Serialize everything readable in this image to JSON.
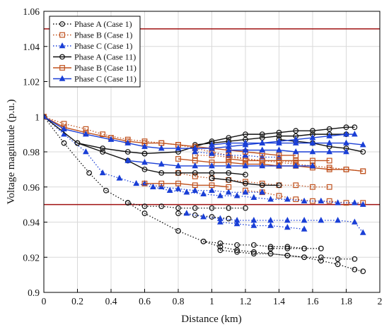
{
  "chart_data": {
    "type": "line",
    "xlabel": "Distance (km)",
    "ylabel": "Voltage magnitude (p.u.)",
    "xlim": [
      0,
      2
    ],
    "ylim": [
      0.9,
      1.06
    ],
    "xticks": [
      "0",
      "0.2",
      "0.4",
      "0.6",
      "0.8",
      "1",
      "1.2",
      "1.4",
      "1.6",
      "1.8",
      "2"
    ],
    "yticks": [
      "0.9",
      "0.92",
      "0.94",
      "0.96",
      "0.98",
      "1",
      "1.02",
      "1.04",
      "1.06"
    ],
    "grid": true,
    "legend_position": "top-left",
    "limit_lines": [
      0.95,
      1.05
    ],
    "limit_color": "#a01010",
    "series": [
      {
        "name": "Phase A (Case 1)",
        "color": "#111111",
        "marker": "circle",
        "dashed": true,
        "branches": [
          {
            "x": [
              0,
              0.12,
              0.27,
              0.37,
              0.5,
              0.6,
              0.8,
              0.95,
              1.05,
              1.15,
              1.25,
              1.35,
              1.45,
              1.55,
              1.65,
              1.75,
              1.85,
              1.9
            ],
            "y": [
              1.0,
              0.985,
              0.968,
              0.958,
              0.951,
              0.945,
              0.935,
              0.929,
              0.926,
              0.924,
              0.923,
              0.922,
              0.921,
              0.92,
              0.918,
              0.916,
              0.913,
              0.912
            ]
          },
          {
            "x": [
              0.5,
              0.6,
              0.7,
              0.8,
              0.9,
              1.0,
              1.1,
              1.2
            ],
            "y": [
              0.951,
              0.949,
              0.949,
              0.948,
              0.948,
              0.948,
              0.948,
              0.948
            ]
          },
          {
            "x": [
              0.8,
              0.9,
              1.0,
              1.1
            ],
            "y": [
              0.945,
              0.944,
              0.943,
              0.942
            ]
          },
          {
            "x": [
              0.95,
              1.05,
              1.15,
              1.25,
              1.35,
              1.45,
              1.55
            ],
            "y": [
              0.929,
              0.928,
              0.927,
              0.927,
              0.926,
              0.926,
              0.925
            ]
          },
          {
            "x": [
              1.05,
              1.15,
              1.25,
              1.35,
              1.45
            ],
            "y": [
              0.924,
              0.923,
              0.922,
              0.922,
              0.921
            ]
          },
          {
            "x": [
              1.45,
              1.55,
              1.65,
              1.75,
              1.85
            ],
            "y": [
              0.921,
              0.92,
              0.92,
              0.919,
              0.919
            ]
          },
          {
            "x": [
              1.35,
              1.45,
              1.55,
              1.65
            ],
            "y": [
              0.925,
              0.925,
              0.925,
              0.925
            ]
          }
        ]
      },
      {
        "name": "Phase B (Case 1)",
        "color": "#c0521e",
        "marker": "square",
        "dashed": true,
        "branches": [
          {
            "x": [
              0,
              0.12,
              0.25,
              0.35,
              0.5,
              0.6,
              0.7,
              0.8,
              0.9,
              1.0,
              1.1,
              1.2,
              1.3,
              1.4,
              1.5,
              1.6,
              1.7,
              1.8,
              1.9
            ],
            "y": [
              1.0,
              0.996,
              0.993,
              0.99,
              0.987,
              0.986,
              0.985,
              0.984,
              0.982,
              0.98,
              0.978,
              0.976,
              0.975,
              0.974,
              0.973,
              0.972,
              0.971,
              0.97,
              0.969
            ]
          },
          {
            "x": [
              0.8,
              0.9,
              1.0,
              1.1,
              1.2,
              1.3,
              1.4,
              1.5,
              1.6,
              1.7
            ],
            "y": [
              0.968,
              0.966,
              0.965,
              0.964,
              0.963,
              0.962,
              0.961,
              0.961,
              0.96,
              0.96
            ]
          },
          {
            "x": [
              1.2,
              1.3,
              1.4,
              1.5,
              1.6,
              1.7,
              1.8,
              1.9
            ],
            "y": [
              0.958,
              0.957,
              0.955,
              0.953,
              0.952,
              0.952,
              0.951,
              0.951
            ]
          },
          {
            "x": [
              0.9,
              1.0,
              1.1,
              1.2,
              1.3,
              1.4,
              1.5
            ],
            "y": [
              0.978,
              0.978,
              0.977,
              0.976,
              0.975,
              0.975,
              0.974
            ]
          }
        ]
      },
      {
        "name": "Phase C (Case 1)",
        "color": "#1a3fd6",
        "marker": "triangle",
        "dashed": true,
        "branches": [
          {
            "x": [
              0,
              0.12,
              0.25,
              0.35,
              0.45,
              0.55,
              0.65,
              0.75,
              0.85,
              0.95,
              1.05,
              1.15,
              1.25,
              1.35,
              1.45,
              1.55,
              1.65,
              1.75,
              1.85,
              1.9
            ],
            "y": [
              1.0,
              0.99,
              0.98,
              0.968,
              0.965,
              0.962,
              0.96,
              0.958,
              0.957,
              0.956,
              0.955,
              0.955,
              0.954,
              0.953,
              0.953,
              0.952,
              0.952,
              0.951,
              0.951,
              0.95
            ]
          },
          {
            "x": [
              0.85,
              0.95,
              1.05,
              1.15,
              1.25,
              1.35,
              1.45,
              1.55,
              1.65,
              1.75,
              1.85,
              1.9
            ],
            "y": [
              0.945,
              0.943,
              0.942,
              0.941,
              0.941,
              0.941,
              0.941,
              0.941,
              0.941,
              0.941,
              0.94,
              0.934
            ]
          },
          {
            "x": [
              1.05,
              1.15,
              1.25,
              1.35,
              1.45,
              1.55
            ],
            "y": [
              0.94,
              0.939,
              0.938,
              0.938,
              0.937,
              0.936
            ]
          },
          {
            "x": [
              0.6,
              0.7,
              0.8,
              0.9,
              1.0,
              1.1,
              1.2,
              1.3
            ],
            "y": [
              0.962,
              0.96,
              0.959,
              0.958,
              0.958,
              0.957,
              0.957,
              0.957
            ]
          },
          {
            "x": [
              0.9,
              1.0,
              1.1,
              1.2,
              1.3,
              1.4
            ],
            "y": [
              0.98,
              0.979,
              0.978,
              0.978,
              0.977,
              0.977
            ]
          }
        ]
      },
      {
        "name": "Phase A (Case 11)",
        "color": "#111111",
        "marker": "circle",
        "dashed": false,
        "branches": [
          {
            "x": [
              0,
              0.2,
              0.35,
              0.5,
              0.6,
              0.7,
              0.8,
              0.9,
              1.0,
              1.1,
              1.2
            ],
            "y": [
              1.0,
              0.985,
              0.98,
              0.975,
              0.97,
              0.968,
              0.968,
              0.968,
              0.968,
              0.968,
              0.967
            ]
          },
          {
            "x": [
              0.6,
              0.8,
              0.9,
              1.0,
              1.1,
              1.2,
              1.3,
              1.4,
              1.5,
              1.6,
              1.7,
              1.8,
              1.85
            ],
            "y": [
              0.979,
              0.98,
              0.983,
              0.986,
              0.988,
              0.99,
              0.99,
              0.991,
              0.992,
              0.992,
              0.993,
              0.994,
              0.994
            ]
          },
          {
            "x": [
              0.9,
              1.0,
              1.1,
              1.2,
              1.3,
              1.4,
              1.5,
              1.6,
              1.7,
              1.8
            ],
            "y": [
              0.984,
              0.985,
              0.986,
              0.987,
              0.988,
              0.989,
              0.989,
              0.99,
              0.99,
              0.99
            ]
          },
          {
            "x": [
              1.4,
              1.5,
              1.6,
              1.7,
              1.8,
              1.9
            ],
            "y": [
              0.987,
              0.986,
              0.985,
              0.983,
              0.982,
              0.98
            ]
          },
          {
            "x": [
              1.0,
              1.1,
              1.2,
              1.3,
              1.4
            ],
            "y": [
              0.965,
              0.964,
              0.962,
              0.961,
              0.961
            ]
          },
          {
            "x": [
              0.2,
              0.35,
              0.5,
              0.6
            ],
            "y": [
              0.985,
              0.982,
              0.98,
              0.979
            ]
          }
        ]
      },
      {
        "name": "Phase B (Case 11)",
        "color": "#c0521e",
        "marker": "square",
        "dashed": false,
        "branches": [
          {
            "x": [
              0,
              0.12,
              0.25,
              0.4,
              0.5,
              0.6,
              0.7,
              0.8,
              0.9,
              1.0,
              1.1,
              1.2,
              1.3,
              1.4,
              1.5
            ],
            "y": [
              1.0,
              0.994,
              0.991,
              0.988,
              0.986,
              0.985,
              0.985,
              0.984,
              0.983,
              0.982,
              0.981,
              0.98,
              0.979,
              0.978,
              0.978
            ]
          },
          {
            "x": [
              0.8,
              0.9,
              1.0,
              1.1,
              1.2,
              1.3,
              1.4,
              1.5,
              1.6,
              1.7,
              1.8,
              1.9
            ],
            "y": [
              0.976,
              0.975,
              0.974,
              0.974,
              0.973,
              0.973,
              0.972,
              0.972,
              0.971,
              0.97,
              0.97,
              0.969
            ]
          },
          {
            "x": [
              0.6,
              0.7,
              0.8,
              0.9,
              1.0,
              1.1
            ],
            "y": [
              0.962,
              0.962,
              0.962,
              0.961,
              0.961,
              0.96
            ]
          },
          {
            "x": [
              1.1,
              1.2,
              1.3,
              1.4,
              1.5,
              1.6,
              1.7
            ],
            "y": [
              0.976,
              0.975,
              0.975,
              0.975,
              0.975,
              0.975,
              0.975
            ]
          }
        ]
      },
      {
        "name": "Phase C (Case 11)",
        "color": "#1a3fd6",
        "marker": "triangle",
        "dashed": false,
        "branches": [
          {
            "x": [
              0,
              0.12,
              0.25,
              0.4,
              0.5,
              0.6,
              0.7,
              0.8,
              0.9,
              1.0,
              1.1,
              1.2,
              1.3,
              1.4,
              1.5,
              1.6,
              1.7,
              1.8,
              1.85
            ],
            "y": [
              1.0,
              0.993,
              0.99,
              0.987,
              0.985,
              0.983,
              0.982,
              0.982,
              0.982,
              0.982,
              0.983,
              0.984,
              0.985,
              0.986,
              0.987,
              0.988,
              0.989,
              0.99,
              0.99
            ]
          },
          {
            "x": [
              0.5,
              0.6,
              0.7,
              0.8,
              0.9,
              1.0,
              1.1,
              1.2,
              1.3,
              1.4,
              1.5,
              1.6
            ],
            "y": [
              0.975,
              0.974,
              0.973,
              0.972,
              0.972,
              0.972,
              0.972,
              0.972,
              0.972,
              0.972,
              0.972,
              0.972
            ]
          },
          {
            "x": [
              1.0,
              1.1,
              1.2,
              1.3,
              1.4,
              1.5,
              1.6,
              1.7,
              1.8,
              1.9
            ],
            "y": [
              0.984,
              0.985,
              0.985,
              0.985,
              0.985,
              0.985,
              0.985,
              0.985,
              0.985,
              0.984
            ]
          },
          {
            "x": [
              1.1,
              1.2,
              1.3,
              1.4,
              1.5,
              1.6,
              1.7,
              1.8
            ],
            "y": [
              0.981,
              0.981,
              0.981,
              0.981,
              0.98,
              0.98,
              0.98,
              0.98
            ]
          }
        ]
      }
    ]
  }
}
